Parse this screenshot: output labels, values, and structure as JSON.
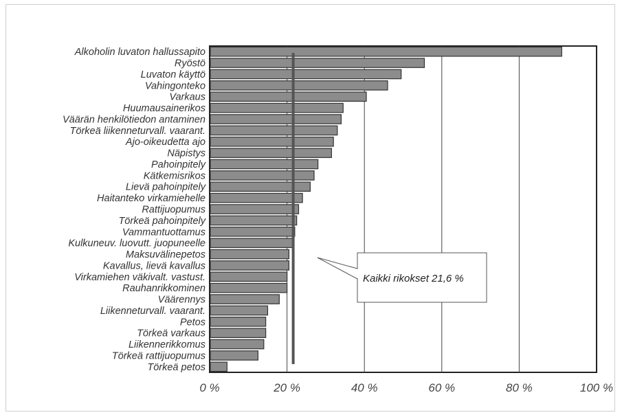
{
  "chart_data": {
    "type": "bar",
    "orientation": "horizontal",
    "categories": [
      "Alkoholin luvaton hallussapito",
      "Ryöstö",
      "Luvaton käyttö",
      "Vahingonteko",
      "Varkaus",
      "Huumausainerikos",
      "Väärän henkilötiedon antaminen",
      "Törkeä liikenneturvall. vaarant.",
      "Ajo-oikeudetta ajo",
      "Näpistys",
      "Pahoinpitely",
      "Kätkemisrikos",
      "Lievä pahoinpitely",
      "Haitanteko virkamiehelle",
      "Rattijuopumus",
      "Törkeä pahoinpitely",
      "Vammantuottamus",
      "Kulkuneuv. luovutt. juopuneelle",
      "Maksuvälinepetos",
      "Kavallus, lievä kavallus",
      "Virkamiehen väkivalt. vastust.",
      "Rauhanrikkominen",
      "Väärennys",
      "Liikenneturvall. vaarant.",
      "Petos",
      "Törkeä varkaus",
      "Liikennerikkomus",
      "Törkeä rattijuopumus",
      "Törkeä petos"
    ],
    "values": [
      91,
      55.5,
      49.5,
      46,
      40.5,
      34.5,
      34,
      33,
      32,
      31.5,
      28,
      27,
      26,
      24,
      23,
      22.5,
      22,
      21.5,
      20.5,
      20.5,
      20,
      20,
      18,
      15,
      14.5,
      14.5,
      14,
      12.5,
      4.5
    ],
    "xlim": [
      0,
      100
    ],
    "x_ticks": [
      "0 %",
      "20 %",
      "40 %",
      "60 %",
      "80 %",
      "100 %"
    ],
    "reference_line": {
      "value": 21.6,
      "label": "Kaikki rikokset 21,6 %"
    },
    "grid": "vertical",
    "colors": {
      "bar": "#8c8c8c",
      "bar_edge": "#333333",
      "reference": "#555555"
    }
  }
}
